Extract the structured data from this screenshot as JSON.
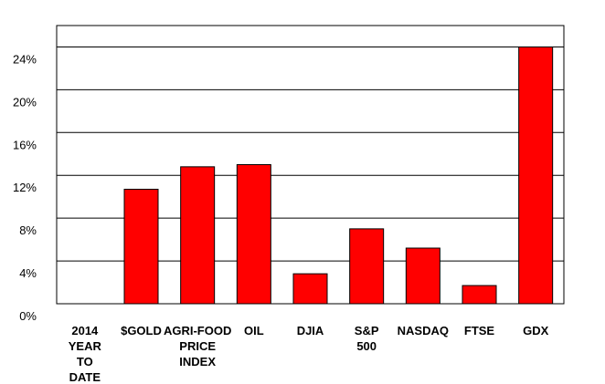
{
  "chart_data": {
    "type": "bar",
    "title": "",
    "xlabel": "",
    "ylabel": "",
    "categories": [
      [
        "2014",
        "YEAR",
        "TO",
        "DATE"
      ],
      [
        "$GOLD"
      ],
      [
        "AGRI-FOOD",
        "PRICE",
        "INDEX"
      ],
      [
        "OIL"
      ],
      [
        "DJIA"
      ],
      [
        "S&P",
        "500"
      ],
      [
        "NASDAQ"
      ],
      [
        "FTSE"
      ],
      [
        "GDX"
      ]
    ],
    "values": [
      null,
      10.7,
      12.8,
      13.0,
      2.8,
      7.0,
      5.2,
      1.7,
      24.0
    ],
    "ylim": [
      0,
      26
    ],
    "yticks": [
      0,
      4,
      8,
      12,
      16,
      20,
      24
    ],
    "ytick_labels": [
      "0%",
      "4%",
      "8%",
      "12%",
      "16%",
      "20%",
      "24%"
    ],
    "grid": true,
    "legend": "none",
    "colors": {
      "bar_fill": "#ff0000",
      "bar_stroke": "#000000",
      "grid": "#000000",
      "frame": "#000000"
    }
  }
}
